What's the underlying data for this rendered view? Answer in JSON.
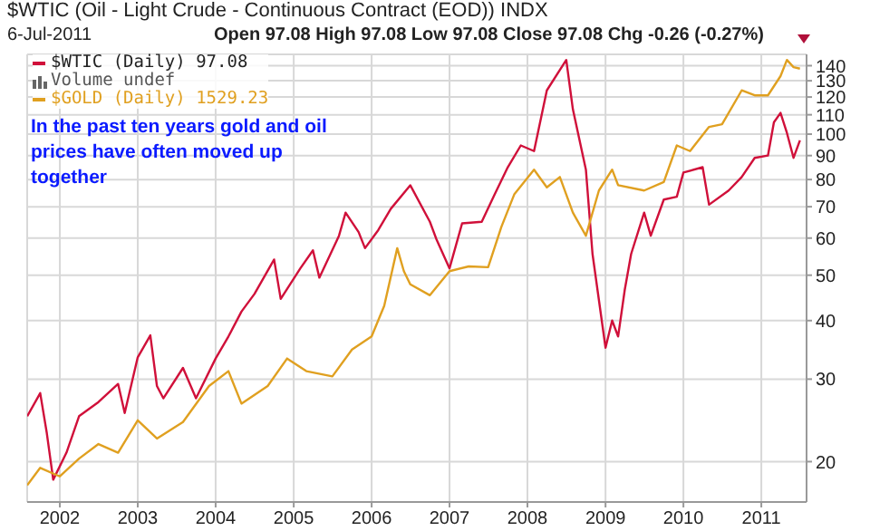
{
  "chart_data": {
    "type": "line",
    "title": "$WTIC (Oil - Light Crude - Continuous Contract (EOD)) INDX",
    "subtitle": "6-Jul-2011",
    "annotations": [
      "Open 97.08 High 97.08 Low 97.08 Close 97.08 Chg -0.26 (-0.27%)",
      "Volume undef",
      "In the past ten years gold and oil prices have often moved up together"
    ],
    "series": [
      {
        "name": "$WTIC (Daily) 97.08",
        "color": "#d0103a",
        "x": [
          "2001-08",
          "2001-10",
          "2001-11",
          "2001-12",
          "2002-02",
          "2002-04",
          "2002-07",
          "2002-10",
          "2002-11",
          "2003-01",
          "2003-03",
          "2003-04",
          "2003-05",
          "2003-08",
          "2003-10",
          "2004-01",
          "2004-03",
          "2004-05",
          "2004-07",
          "2004-10",
          "2004-11",
          "2005-02",
          "2005-04",
          "2005-05",
          "2005-08",
          "2005-09",
          "2005-11",
          "2005-12",
          "2006-02",
          "2006-04",
          "2006-07",
          "2006-10",
          "2006-11",
          "2007-01",
          "2007-03",
          "2007-06",
          "2007-08",
          "2007-10",
          "2007-12",
          "2008-02",
          "2008-04",
          "2008-07",
          "2008-08",
          "2008-10",
          "2008-11",
          "2009-01",
          "2009-02",
          "2009-03",
          "2009-04",
          "2009-05",
          "2009-07",
          "2009-08",
          "2009-10",
          "2009-12",
          "2010-01",
          "2010-04",
          "2010-05",
          "2010-08",
          "2010-10",
          "2010-12",
          "2011-02",
          "2011-03",
          "2011-04",
          "2011-05",
          "2011-06",
          "2011-07"
        ],
        "values": [
          25,
          28,
          23,
          18.3,
          20.9,
          25,
          26.8,
          29.3,
          25.4,
          33.4,
          37.2,
          29,
          27.3,
          31.7,
          27.3,
          33.2,
          37,
          41.8,
          45.6,
          54,
          44.5,
          51.7,
          56.5,
          49.4,
          60.7,
          68,
          61.8,
          57.1,
          62.4,
          69.3,
          77.8,
          65,
          59.6,
          51.7,
          64.5,
          65,
          74.5,
          85,
          94.6,
          92,
          124,
          144,
          113,
          84,
          55.5,
          35,
          40,
          37,
          46.5,
          55.5,
          68,
          60.7,
          72.5,
          73.5,
          82.8,
          85,
          70.7,
          75.8,
          81,
          89,
          90,
          106,
          111,
          100.6,
          89,
          97
        ]
      },
      {
        "name": "$GOLD (Daily) 1529.23",
        "color": "#e0a020",
        "x": [
          "2001-08",
          "2001-10",
          "2002-01",
          "2002-04",
          "2002-07",
          "2002-10",
          "2003-01",
          "2003-04",
          "2003-08",
          "2003-12",
          "2004-03",
          "2004-05",
          "2004-09",
          "2004-12",
          "2005-03",
          "2005-07",
          "2005-10",
          "2006-01",
          "2006-03",
          "2006-05",
          "2006-06",
          "2006-07",
          "2006-10",
          "2007-01",
          "2007-04",
          "2007-07",
          "2007-09",
          "2007-11",
          "2008-02",
          "2008-04",
          "2008-06",
          "2008-08",
          "2008-10",
          "2008-12",
          "2009-02",
          "2009-03",
          "2009-07",
          "2009-10",
          "2009-12",
          "2010-02",
          "2010-05",
          "2010-07",
          "2010-10",
          "2010-12",
          "2011-02",
          "2011-04",
          "2011-05",
          "2011-06",
          "2011-07"
        ],
        "values": [
          17.8,
          19.4,
          18.6,
          20.3,
          21.8,
          20.9,
          24.5,
          22.4,
          24.3,
          29,
          31.2,
          26.6,
          29,
          33.2,
          31.2,
          30.4,
          34.7,
          37,
          43,
          57.1,
          51,
          47.8,
          45.3,
          51,
          52.2,
          52,
          63.4,
          74.5,
          84,
          77,
          81,
          68,
          60.7,
          75.8,
          84,
          77.8,
          75.8,
          79,
          94.6,
          92,
          103.6,
          105,
          124,
          121,
          121,
          133,
          144,
          139,
          138
        ]
      }
    ],
    "log": "y",
    "ylim": [
      16.4,
      148
    ],
    "yticks": [
      20,
      30,
      40,
      50,
      60,
      70,
      80,
      90,
      100,
      110,
      120,
      130,
      140
    ],
    "xlim": [
      "2001-08",
      "2011-08"
    ],
    "xticks": [
      "2002",
      "2003",
      "2004",
      "2005",
      "2006",
      "2007",
      "2008",
      "2009",
      "2010",
      "2011"
    ],
    "grid": true,
    "legend": "top left",
    "marker": "none",
    "line_style": "solid"
  }
}
